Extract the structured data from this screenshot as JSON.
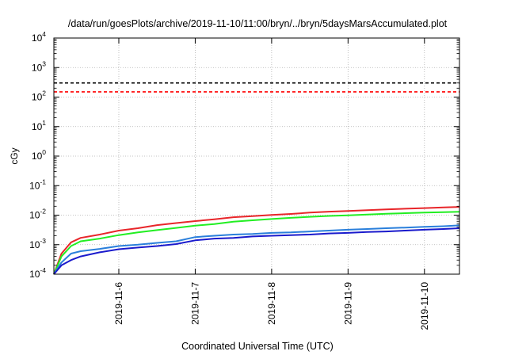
{
  "chart_data": {
    "type": "line",
    "title": "/data/run/goesPlots/archive/2019-11-10/11:00/bryn/../bryn/5daysMarsAccumulated.plot",
    "xlabel": "Coordinated Universal Time (UTC)",
    "ylabel": "cGy",
    "y_scale": "log",
    "ylim": [
      0.0001,
      10000
    ],
    "xlim": [
      "2019-11-05T03:36",
      "2019-11-10T11:00"
    ],
    "y_ticks": [
      {
        "base": "10",
        "exp": "-4",
        "value": 0.0001
      },
      {
        "base": "10",
        "exp": "-3",
        "value": 0.001
      },
      {
        "base": "10",
        "exp": "-2",
        "value": 0.01
      },
      {
        "base": "10",
        "exp": "-1",
        "value": 0.1
      },
      {
        "base": "10",
        "exp": "0",
        "value": 1
      },
      {
        "base": "10",
        "exp": "1",
        "value": 10
      },
      {
        "base": "10",
        "exp": "2",
        "value": 100
      },
      {
        "base": "10",
        "exp": "3",
        "value": 1000
      },
      {
        "base": "10",
        "exp": "4",
        "value": 10000
      }
    ],
    "x_ticks": [
      {
        "label": "2019-11-6",
        "value": "2019-11-06T00:00"
      },
      {
        "label": "2019-11-7",
        "value": "2019-11-07T00:00"
      },
      {
        "label": "2019-11-8",
        "value": "2019-11-08T00:00"
      },
      {
        "label": "2019-11-9",
        "value": "2019-11-09T00:00"
      },
      {
        "label": "2019-11-10",
        "value": "2019-11-10T00:00"
      }
    ],
    "grid": true,
    "legend": "none",
    "reference_lines": [
      {
        "value": 300,
        "color": "#000000",
        "style": "dashed"
      },
      {
        "value": 150,
        "color": "#ff0000",
        "style": "dashed"
      }
    ],
    "series": [
      {
        "color": "#e8262a",
        "x": [
          "2019-11-05T03:36",
          "2019-11-05T06:00",
          "2019-11-05T09:00",
          "2019-11-05T12:00",
          "2019-11-05T18:00",
          "2019-11-06T00:00",
          "2019-11-06T06:00",
          "2019-11-06T12:00",
          "2019-11-06T18:00",
          "2019-11-07T00:00",
          "2019-11-07T06:00",
          "2019-11-07T12:00",
          "2019-11-07T18:00",
          "2019-11-08T00:00",
          "2019-11-08T06:00",
          "2019-11-08T12:00",
          "2019-11-08T18:00",
          "2019-11-09T00:00",
          "2019-11-09T06:00",
          "2019-11-09T12:00",
          "2019-11-09T18:00",
          "2019-11-10T00:00",
          "2019-11-10T06:00",
          "2019-11-10T11:00"
        ],
        "y": [
          0.0001,
          0.0005,
          0.0012,
          0.0017,
          0.0022,
          0.003,
          0.0036,
          0.0046,
          0.0054,
          0.0063,
          0.0072,
          0.0085,
          0.0093,
          0.0102,
          0.011,
          0.0122,
          0.0131,
          0.0138,
          0.0147,
          0.0157,
          0.0165,
          0.0173,
          0.0182,
          0.019
        ]
      },
      {
        "color": "#22ee22",
        "x": [
          "2019-11-05T03:36",
          "2019-11-05T06:00",
          "2019-11-05T09:00",
          "2019-11-05T12:00",
          "2019-11-05T18:00",
          "2019-11-06T00:00",
          "2019-11-06T06:00",
          "2019-11-06T12:00",
          "2019-11-06T18:00",
          "2019-11-07T00:00",
          "2019-11-07T06:00",
          "2019-11-07T12:00",
          "2019-11-07T18:00",
          "2019-11-08T00:00",
          "2019-11-08T06:00",
          "2019-11-08T12:00",
          "2019-11-08T18:00",
          "2019-11-09T00:00",
          "2019-11-09T06:00",
          "2019-11-09T12:00",
          "2019-11-09T18:00",
          "2019-11-10T00:00",
          "2019-11-10T06:00",
          "2019-11-10T11:00"
        ],
        "y": [
          0.0001,
          0.0004,
          0.0009,
          0.0013,
          0.0016,
          0.0021,
          0.0026,
          0.0031,
          0.0037,
          0.0044,
          0.005,
          0.006,
          0.0067,
          0.0074,
          0.0081,
          0.0088,
          0.0094,
          0.0099,
          0.0105,
          0.0111,
          0.0117,
          0.0122,
          0.0126,
          0.013
        ]
      },
      {
        "color": "#2a7fdb",
        "x": [
          "2019-11-05T03:36",
          "2019-11-05T06:00",
          "2019-11-05T09:00",
          "2019-11-05T12:00",
          "2019-11-05T18:00",
          "2019-11-06T00:00",
          "2019-11-06T06:00",
          "2019-11-06T12:00",
          "2019-11-06T18:00",
          "2019-11-07T00:00",
          "2019-11-07T06:00",
          "2019-11-07T12:00",
          "2019-11-07T18:00",
          "2019-11-08T00:00",
          "2019-11-08T06:00",
          "2019-11-08T12:00",
          "2019-11-08T18:00",
          "2019-11-09T00:00",
          "2019-11-09T06:00",
          "2019-11-09T12:00",
          "2019-11-09T18:00",
          "2019-11-10T00:00",
          "2019-11-10T06:00",
          "2019-11-10T11:00"
        ],
        "y": [
          0.0001,
          0.00025,
          0.0005,
          0.0006,
          0.00072,
          0.0009,
          0.001,
          0.00115,
          0.0013,
          0.0018,
          0.002,
          0.0022,
          0.0023,
          0.0025,
          0.0026,
          0.0028,
          0.003,
          0.0032,
          0.0034,
          0.0036,
          0.0038,
          0.004,
          0.0042,
          0.0045
        ]
      },
      {
        "color": "#1a1acc",
        "x": [
          "2019-11-05T03:36",
          "2019-11-05T06:00",
          "2019-11-05T09:00",
          "2019-11-05T12:00",
          "2019-11-05T18:00",
          "2019-11-06T00:00",
          "2019-11-06T06:00",
          "2019-11-06T12:00",
          "2019-11-06T18:00",
          "2019-11-07T00:00",
          "2019-11-07T06:00",
          "2019-11-07T12:00",
          "2019-11-07T18:00",
          "2019-11-08T00:00",
          "2019-11-08T06:00",
          "2019-11-08T12:00",
          "2019-11-08T18:00",
          "2019-11-09T00:00",
          "2019-11-09T06:00",
          "2019-11-09T12:00",
          "2019-11-09T18:00",
          "2019-11-10T00:00",
          "2019-11-10T06:00",
          "2019-11-10T11:00"
        ],
        "y": [
          0.0001,
          0.0002,
          0.0003,
          0.0004,
          0.00055,
          0.0007,
          0.0008,
          0.0009,
          0.00105,
          0.0014,
          0.0016,
          0.0017,
          0.0019,
          0.002,
          0.0021,
          0.0022,
          0.0024,
          0.0025,
          0.0027,
          0.0028,
          0.003,
          0.0032,
          0.0034,
          0.0036
        ]
      }
    ]
  }
}
